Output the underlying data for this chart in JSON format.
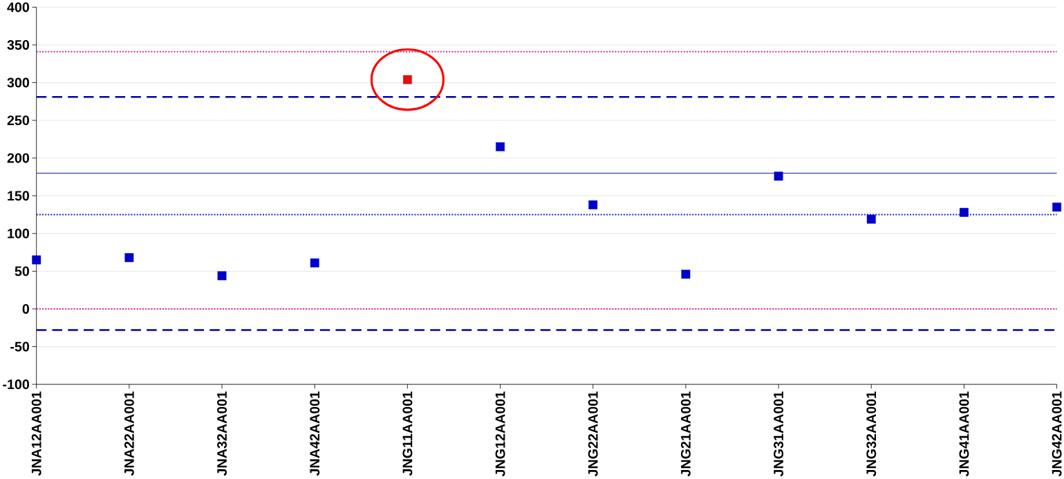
{
  "chart_data": {
    "type": "scatter",
    "categories": [
      "JNA12AA001",
      "JNA22AA001",
      "JNA32AA001",
      "JNA42AA001",
      "JNG11AA001",
      "JNG12AA001",
      "JNG22AA001",
      "JNG21AA001",
      "JNG31AA001",
      "JNG32AA001",
      "JNG41AA001",
      "JNG42AA001"
    ],
    "values": [
      65,
      68,
      44,
      61,
      304,
      215,
      138,
      46,
      176,
      119,
      128,
      135
    ],
    "colors": [
      "#0000cc",
      "#0000cc",
      "#0000cc",
      "#0000cc",
      "#dd1111",
      "#0000cc",
      "#0000cc",
      "#0000cc",
      "#0000cc",
      "#0000cc",
      "#0000cc",
      "#0000cc"
    ],
    "marker": "square",
    "ylim": [
      -100,
      400
    ],
    "yticks": [
      -100,
      -50,
      0,
      50,
      100,
      150,
      200,
      250,
      300,
      350,
      400
    ],
    "grid": "y",
    "ref_lines": [
      {
        "axis": "y",
        "value": 341,
        "color": "#cc3399",
        "line_style": "dotted"
      },
      {
        "axis": "y",
        "value": 281,
        "color": "#0000aa",
        "line_style": "dashed"
      },
      {
        "axis": "y",
        "value": 180,
        "color": "#1a1aa0",
        "line_style": "solid"
      },
      {
        "axis": "y",
        "value": 125,
        "color": "#2222cc",
        "line_style": "dotted"
      },
      {
        "axis": "y",
        "value": 0,
        "color": "#cc3399",
        "line_style": "dotted"
      },
      {
        "axis": "y",
        "value": -28,
        "color": "#0000aa",
        "line_style": "dashed"
      }
    ]
  }
}
